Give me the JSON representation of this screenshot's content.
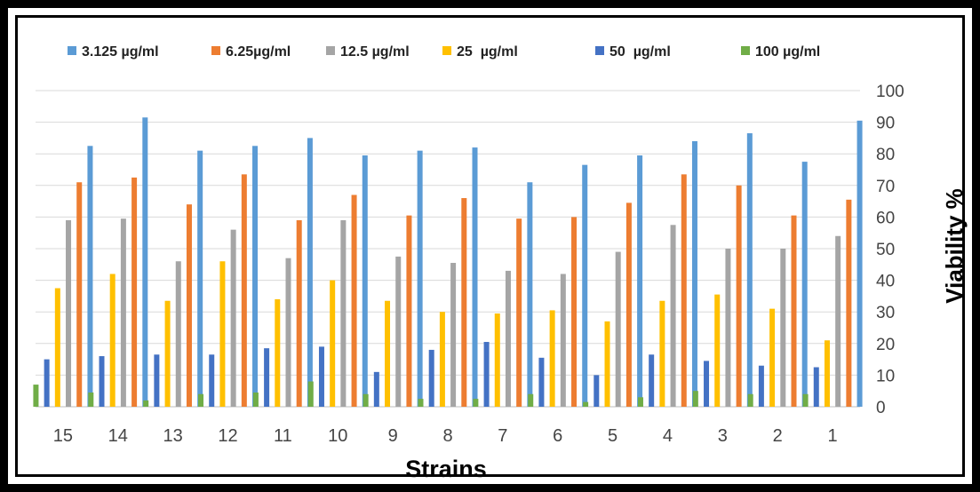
{
  "chart_data": {
    "type": "bar",
    "xlabel": "Strains",
    "ylabel": "Viability %",
    "ylim": [
      0,
      100
    ],
    "yticks": [
      0,
      10,
      20,
      30,
      40,
      50,
      60,
      70,
      80,
      90,
      100
    ],
    "y_axis_side": "right",
    "grid": true,
    "legend_position": "top",
    "categories": [
      "15",
      "14",
      "13",
      "12",
      "11",
      "10",
      "9",
      "8",
      "7",
      "6",
      "5",
      "4",
      "3",
      "2",
      "1"
    ],
    "series": [
      {
        "name": "100 µg/ml",
        "color": "#70ad47",
        "values": [
          7,
          4.5,
          2,
          4,
          4.5,
          8,
          4,
          2.5,
          2.5,
          4,
          1.5,
          3,
          5,
          4,
          4
        ]
      },
      {
        "name": "50  µg/ml",
        "color": "#4472c4",
        "values": [
          15,
          16,
          16.5,
          16.5,
          18.5,
          19,
          11,
          18,
          20.5,
          15.5,
          10,
          16.5,
          14.5,
          13,
          12.5
        ]
      },
      {
        "name": "25  µg/ml",
        "color": "#ffc000",
        "values": [
          37.5,
          42,
          33.5,
          46,
          34,
          40,
          33.5,
          30,
          29.5,
          30.5,
          27,
          33.5,
          35.5,
          31,
          21
        ]
      },
      {
        "name": "12.5 µg/ml",
        "color": "#a5a5a5",
        "values": [
          59,
          59.5,
          46,
          56,
          47,
          59,
          47.5,
          45.5,
          43,
          42,
          49,
          57.5,
          50,
          50,
          54
        ]
      },
      {
        "name": "6.25µg/ml",
        "color": "#ed7d31",
        "values": [
          71,
          72.5,
          64,
          73.5,
          59,
          67,
          60.5,
          66,
          59.5,
          60,
          64.5,
          73.5,
          70,
          60.5,
          65.5
        ]
      },
      {
        "name": "3.125 µg/ml",
        "color": "#5b9bd5",
        "values": [
          82.5,
          91.5,
          81,
          82.5,
          85,
          79.5,
          81,
          82,
          71,
          76.5,
          79.5,
          84,
          86.5,
          77.5,
          90.5
        ]
      }
    ],
    "legend_order": [
      "3.125 µg/ml",
      "6.25µg/ml",
      "12.5 µg/ml",
      "25  µg/ml",
      "50  µg/ml",
      "100 µg/ml"
    ]
  }
}
